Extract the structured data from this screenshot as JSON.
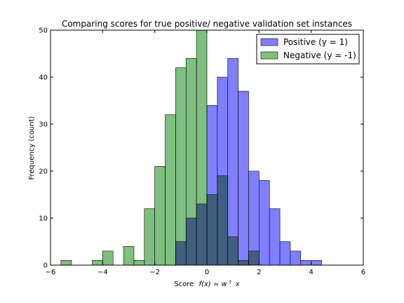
{
  "chart_data": {
    "type": "bar",
    "subtype": "overlapping-histogram",
    "title": "Comparing scores for true positive/ negative validation set instances",
    "xlabel": "Score",
    "xlabel_math": "f(x) = w",
    "xlabel_math_sup": "t",
    "xlabel_math_tail": "x",
    "ylabel": "Frequency (count)",
    "xlim": [
      -6,
      6
    ],
    "ylim": [
      0,
      50
    ],
    "xticks": [
      "−6",
      "−4",
      "−2",
      "0",
      "2",
      "4",
      "6"
    ],
    "yticks": [
      "0",
      "10",
      "20",
      "30",
      "40",
      "50"
    ],
    "grid": false,
    "legend_position": "top-right",
    "series": [
      {
        "name": "Positive (y = 1)",
        "color": "#7f7fff",
        "bins": [
          {
            "x0": -1.2,
            "x1": -0.8,
            "value": 5
          },
          {
            "x0": -0.8,
            "x1": -0.4,
            "value": 10
          },
          {
            "x0": -0.4,
            "x1": 0.0,
            "value": 13
          },
          {
            "x0": 0.0,
            "x1": 0.4,
            "value": 34
          },
          {
            "x0": 0.4,
            "x1": 0.8,
            "value": 40
          },
          {
            "x0": 0.8,
            "x1": 1.2,
            "value": 44
          },
          {
            "x0": 1.2,
            "x1": 1.6,
            "value": 37
          },
          {
            "x0": 1.6,
            "x1": 2.0,
            "value": 20
          },
          {
            "x0": 2.0,
            "x1": 2.4,
            "value": 18
          },
          {
            "x0": 2.4,
            "x1": 2.8,
            "value": 12
          },
          {
            "x0": 2.8,
            "x1": 3.2,
            "value": 5
          },
          {
            "x0": 3.2,
            "x1": 3.6,
            "value": 3
          },
          {
            "x0": 3.6,
            "x1": 4.0,
            "value": 1
          },
          {
            "x0": 4.0,
            "x1": 4.4,
            "value": 1
          }
        ]
      },
      {
        "name": "Negative (y = -1)",
        "color": "#7fbf7f",
        "bins": [
          {
            "x0": -5.6,
            "x1": -5.2,
            "value": 1
          },
          {
            "x0": -4.4,
            "x1": -4.0,
            "value": 1
          },
          {
            "x0": -4.0,
            "x1": -3.6,
            "value": 3
          },
          {
            "x0": -3.2,
            "x1": -2.8,
            "value": 4
          },
          {
            "x0": -2.8,
            "x1": -2.4,
            "value": 1
          },
          {
            "x0": -2.4,
            "x1": -2.0,
            "value": 12
          },
          {
            "x0": -2.0,
            "x1": -1.6,
            "value": 21
          },
          {
            "x0": -1.6,
            "x1": -1.2,
            "value": 32
          },
          {
            "x0": -1.2,
            "x1": -0.8,
            "value": 42
          },
          {
            "x0": -0.8,
            "x1": -0.4,
            "value": 44
          },
          {
            "x0": -0.4,
            "x1": 0.0,
            "value": 50
          },
          {
            "x0": 0.0,
            "x1": 0.4,
            "value": 15
          },
          {
            "x0": 0.4,
            "x1": 0.8,
            "value": 19
          },
          {
            "x0": 0.8,
            "x1": 1.2,
            "value": 6
          },
          {
            "x0": 1.2,
            "x1": 1.6,
            "value": 1
          },
          {
            "x0": 1.6,
            "x1": 2.0,
            "value": 3
          }
        ]
      }
    ]
  }
}
